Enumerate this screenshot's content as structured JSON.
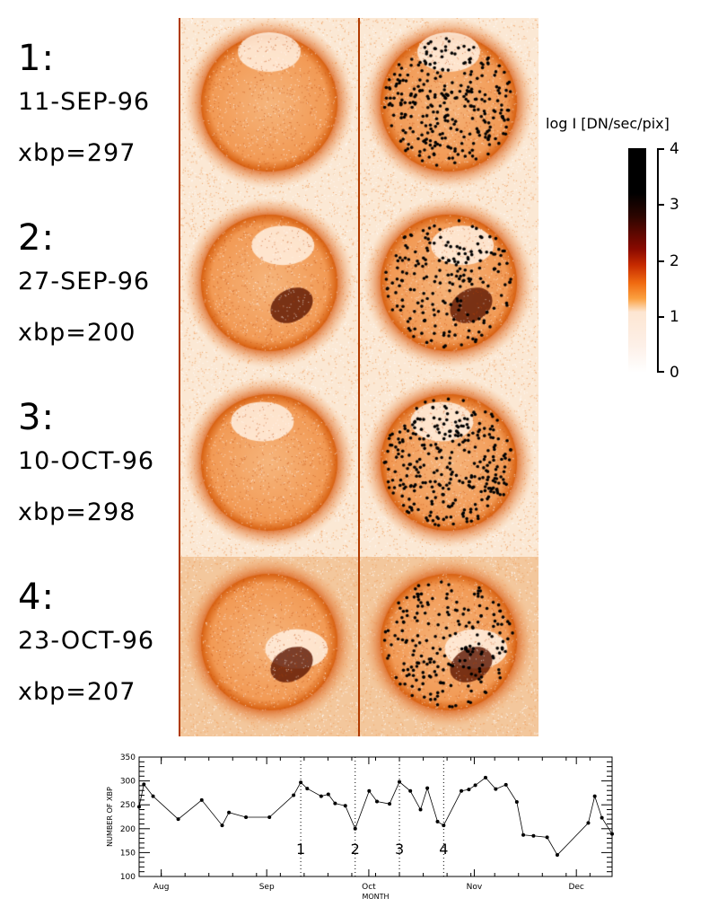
{
  "panels": [
    {
      "index": "1:",
      "date": "11-SEP-96",
      "xbp": "xbp=297"
    },
    {
      "index": "2:",
      "date": "27-SEP-96",
      "xbp": "xbp=200"
    },
    {
      "index": "3:",
      "date": "10-OCT-96",
      "xbp": "xbp=298"
    },
    {
      "index": "4:",
      "date": "23-OCT-96",
      "xbp": "xbp=207"
    }
  ],
  "colorbar": {
    "title": "log  I [DN/sec/pix]",
    "ticks": [
      "4",
      "3",
      "2",
      "1",
      "0"
    ],
    "range": [
      0,
      4
    ]
  },
  "colors": {
    "sun_ring": "#d25a10",
    "disc": "#f5a868",
    "background": "#fae3c9",
    "bright_point": "#000000"
  },
  "chart_data": {
    "type": "line",
    "title": "",
    "xlabel": "MONTH",
    "ylabel": "NUMBER OF XBP",
    "x_unit": "days since Aug 1 1996",
    "xlim": [
      -6.5,
      132.5
    ],
    "ylim": [
      100,
      350
    ],
    "yticks": [
      "100",
      "150",
      "200",
      "250",
      "300",
      "350"
    ],
    "xticks": [
      {
        "label": "Aug",
        "day": 0
      },
      {
        "label": "Sep",
        "day": 31
      },
      {
        "label": "Oct",
        "day": 61
      },
      {
        "label": "Nov",
        "day": 92
      },
      {
        "label": "Dec",
        "day": 122
      }
    ],
    "x": [
      -6.5,
      -5.1,
      -2.4,
      5,
      11.9,
      17.9,
      19.9,
      24.9,
      31.8,
      38.9,
      41,
      42.9,
      47,
      49.1,
      51.1,
      54.1,
      57,
      61.1,
      63.4,
      67.1,
      70,
      73.2,
      76.2,
      78.2,
      81.2,
      83,
      88.2,
      90.4,
      92.3,
      95.3,
      98.3,
      101.3,
      104.5,
      106.4,
      109.4,
      113.4,
      116.4,
      125.5,
      127.4,
      129.5,
      132.5
    ],
    "y": [
      246,
      293,
      268,
      220,
      260,
      207,
      234,
      224,
      224,
      270,
      297,
      284,
      268,
      272,
      253,
      248,
      200,
      279,
      257,
      252,
      298,
      279,
      240,
      285,
      215,
      207,
      279,
      282,
      291,
      307,
      283,
      292,
      256,
      187,
      185,
      182,
      145,
      212,
      268,
      223,
      189
    ],
    "markers": [
      {
        "label": "1",
        "day": 41
      },
      {
        "label": "2",
        "day": 57
      },
      {
        "label": "3",
        "day": 70
      },
      {
        "label": "4",
        "day": 83
      }
    ],
    "grid": false
  }
}
